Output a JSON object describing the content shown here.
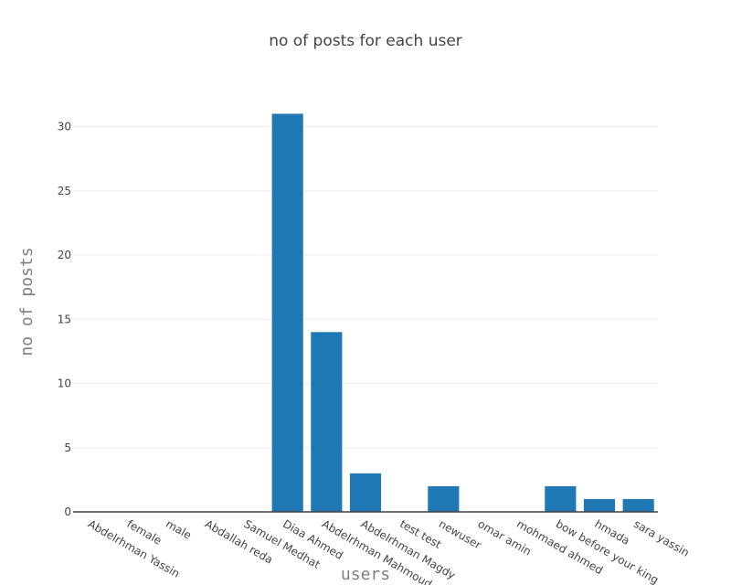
{
  "chart_data": {
    "type": "bar",
    "title": "no of posts for each user",
    "xlabel": "users",
    "ylabel": "no of posts",
    "categories": [
      "Abdelrhman Yassin",
      "female",
      "male",
      "Abdallah reda",
      "Samuel Medhat",
      "Diaa Ahmed",
      "Abdelrhman Mahmoud",
      "Abdelrhman Magdy",
      "test test",
      "newuser",
      "omar amin",
      "mohmaed ahmed",
      "bow before your king",
      "hmada",
      "sara yassin"
    ],
    "values": [
      0,
      0,
      0,
      0,
      0,
      31,
      14,
      3,
      0,
      2,
      0,
      0,
      2,
      1,
      1
    ],
    "ylim": [
      0,
      32.6
    ],
    "yticks": [
      0,
      5,
      10,
      15,
      20,
      25,
      30
    ],
    "grid": true,
    "colors": {
      "bar": "#1f77b4",
      "grid": "#eeeeee",
      "zeroline": "#444444",
      "text": "#444444",
      "axis_title": "#7f7f7f"
    }
  }
}
